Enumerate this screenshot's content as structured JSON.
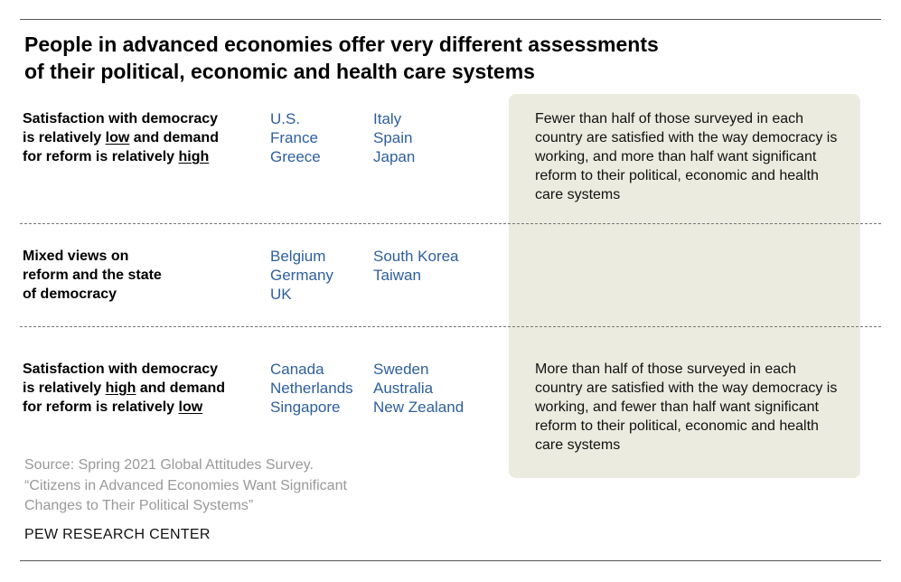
{
  "title": [
    "People in advanced economies offer very different assessments",
    "of their political, economic and health care systems"
  ],
  "rows": [
    {
      "label_lines": [
        [
          {
            "t": "Satisfaction with democracy",
            "u": false
          }
        ],
        [
          {
            "t": "is relatively ",
            "u": false
          },
          {
            "t": "low",
            "u": true
          },
          {
            "t": " and demand",
            "u": false
          }
        ],
        [
          {
            "t": "for reform is relatively ",
            "u": false
          },
          {
            "t": "high",
            "u": true
          }
        ]
      ],
      "col1": [
        "U.S.",
        "France",
        "Greece"
      ],
      "col2": [
        "Italy",
        "Spain",
        "Japan"
      ],
      "note": "Fewer than half of those surveyed in each country are satisfied with the way democracy is working, and more than half want significant reform to their political, economic and health care systems"
    },
    {
      "label_lines": [
        [
          {
            "t": "Mixed views on",
            "u": false
          }
        ],
        [
          {
            "t": "reform and the state",
            "u": false
          }
        ],
        [
          {
            "t": "of democracy",
            "u": false
          }
        ]
      ],
      "col1": [
        "Belgium",
        "Germany",
        "UK"
      ],
      "col2": [
        "South Korea",
        "Taiwan"
      ],
      "note": ""
    },
    {
      "label_lines": [
        [
          {
            "t": "Satisfaction with democracy",
            "u": false
          }
        ],
        [
          {
            "t": "is relatively ",
            "u": false
          },
          {
            "t": "high",
            "u": true
          },
          {
            "t": " and demand",
            "u": false
          }
        ],
        [
          {
            "t": "for reform is relatively ",
            "u": false
          },
          {
            "t": "low",
            "u": true
          }
        ]
      ],
      "col1": [
        "Canada",
        "Netherlands",
        "Singapore"
      ],
      "col2": [
        "Sweden",
        "Australia",
        "New Zealand"
      ],
      "note": "More than half of those surveyed in each country are satisfied with the way democracy is working, and fewer than half want significant reform to their political, economic and health care systems"
    }
  ],
  "source": [
    "Source: Spring 2021 Global Attitudes Survey.",
    "“Citizens in Advanced Economies Want Significant",
    "Changes to Their Political Systems”"
  ],
  "brand": "PEW RESEARCH CENTER",
  "colors": {
    "country": "#2e5f9e",
    "box": "#ebebdf",
    "source": "#999999"
  }
}
